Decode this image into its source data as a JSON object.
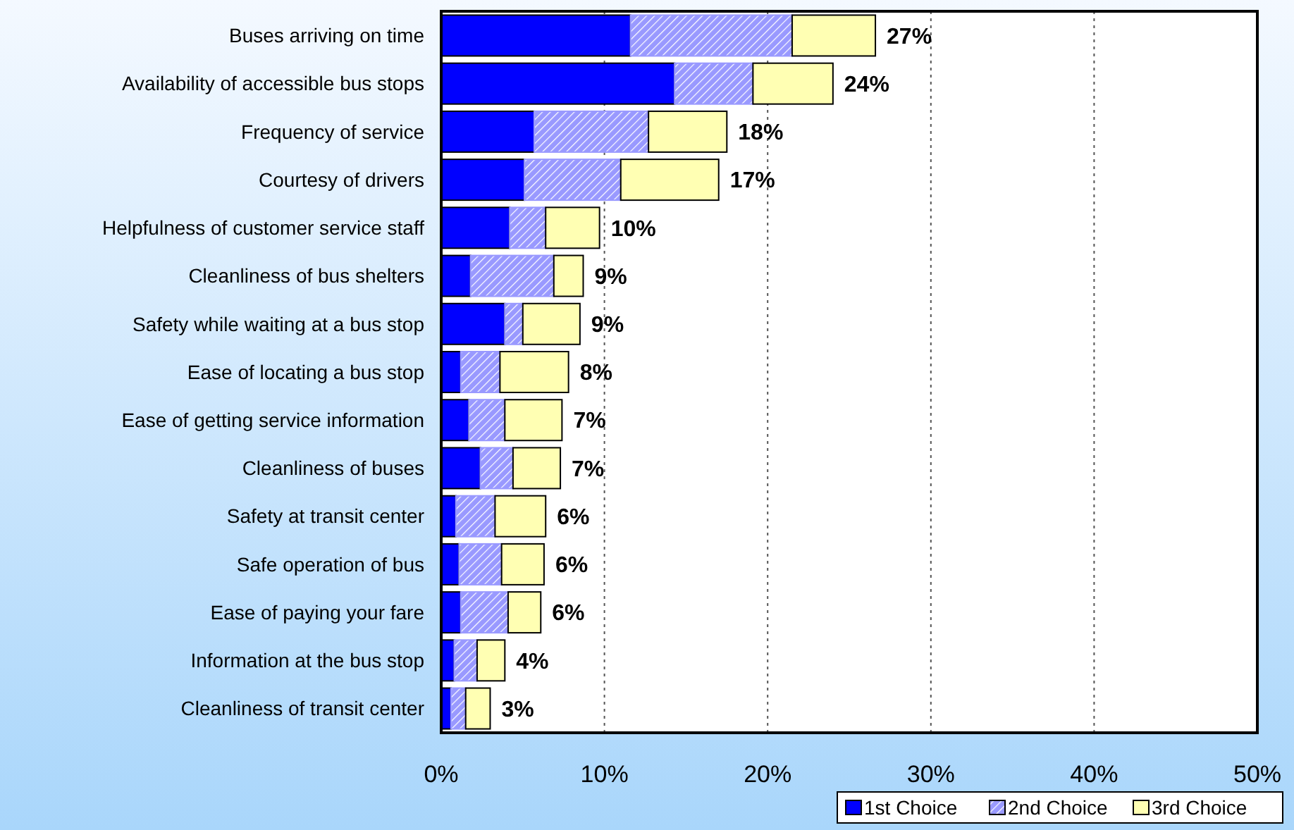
{
  "chart_data": {
    "type": "bar",
    "orientation": "horizontal",
    "stacked": true,
    "categories": [
      "Buses arriving on time",
      "Availability of accessible bus stops",
      "Frequency of service",
      "Courtesy of drivers",
      "Helpfulness of customer service staff",
      "Cleanliness of bus shelters",
      "Safety while waiting at a bus stop",
      "Ease of locating a bus stop",
      "Ease of getting service information",
      "Cleanliness of buses",
      "Safety at transit center",
      "Safe operation of bus",
      "Ease of paying your fare",
      "Information at the bus stop",
      "Cleanliness of transit center"
    ],
    "series": [
      {
        "name": "1st Choice",
        "color": "#0000ff",
        "values": [
          11.6,
          14.3,
          5.7,
          5.1,
          4.2,
          1.8,
          3.9,
          1.2,
          1.7,
          2.4,
          0.9,
          1.1,
          1.2,
          0.8,
          0.6
        ]
      },
      {
        "name": "2nd Choice",
        "color": "#9999ff",
        "values": [
          9.9,
          4.8,
          7.0,
          5.9,
          2.2,
          5.1,
          1.1,
          2.4,
          2.2,
          2.0,
          2.4,
          2.6,
          2.9,
          1.4,
          0.9
        ]
      },
      {
        "name": "3rd Choice",
        "color": "#ffffb3",
        "values": [
          5.1,
          4.9,
          4.8,
          6.0,
          3.3,
          1.8,
          3.5,
          4.2,
          3.5,
          2.9,
          3.1,
          2.6,
          2.0,
          1.7,
          1.5
        ]
      }
    ],
    "value_labels": [
      "27%",
      "24%",
      "18%",
      "17%",
      "10%",
      "9%",
      "9%",
      "8%",
      "7%",
      "7%",
      "6%",
      "6%",
      "6%",
      "4%",
      "3%"
    ],
    "xlim": [
      0,
      50
    ],
    "xticks": [
      {
        "value": 0,
        "label": "0%"
      },
      {
        "value": 10,
        "label": "10%"
      },
      {
        "value": 20,
        "label": "20%"
      },
      {
        "value": 30,
        "label": "30%"
      },
      {
        "value": 40,
        "label": "40%"
      },
      {
        "value": 50,
        "label": "50%"
      }
    ],
    "grid": "x",
    "legend": "bottom right"
  }
}
